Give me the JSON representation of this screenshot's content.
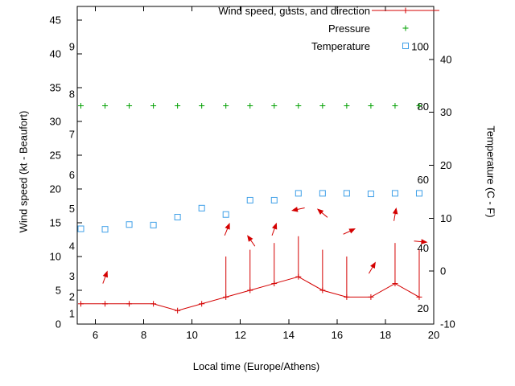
{
  "chart_data": {
    "type": "line",
    "title": "",
    "xlabel": "Local time (Europe/Athens)",
    "ylabel_left": "Wind speed (kt - Beaufort)",
    "ylabel_right": "Temperature (C - F)",
    "x_range": [
      5.25,
      20
    ],
    "x_ticks": [
      6,
      8,
      10,
      12,
      14,
      16,
      18,
      20
    ],
    "left_axis": {
      "ticks": [
        0,
        5,
        10,
        15,
        20,
        25,
        30,
        35,
        40,
        45
      ],
      "range": [
        0,
        47
      ]
    },
    "right_axis": {
      "ticks": [
        -10,
        0,
        10,
        20,
        30,
        40
      ],
      "range": [
        -10,
        50
      ]
    },
    "beaufort_scale_labels": [
      [
        "1",
        1.5
      ],
      [
        "2",
        4
      ],
      [
        "3",
        7
      ],
      [
        "4",
        11.5
      ],
      [
        "5",
        17
      ],
      [
        "6",
        22
      ],
      [
        "7",
        28
      ],
      [
        "8",
        34
      ],
      [
        "9",
        41
      ]
    ],
    "fahrenheit_scale_labels": [
      [
        "20",
        -7.1
      ],
      [
        "40",
        4.3
      ],
      [
        "60",
        17.2
      ],
      [
        "80",
        31.0
      ],
      [
        "100",
        42.3
      ]
    ],
    "legend": [
      {
        "label": "Wind speed, gusts, and direction",
        "series": "wind"
      },
      {
        "label": "Pressure",
        "series": "pressure"
      },
      {
        "label": "Temperature",
        "series": "temperature"
      }
    ],
    "colors": {
      "wind": "#d40000",
      "pressure": "#00a000",
      "temperature": "#3fa0e8",
      "axis": "#000000"
    },
    "x_hours": [
      5.4,
      6.4,
      7.4,
      8.4,
      9.4,
      10.4,
      11.4,
      12.4,
      13.4,
      14.4,
      15.4,
      16.4,
      17.4,
      18.4,
      19.4
    ],
    "wind": {
      "speed_kt": [
        3,
        3,
        3,
        3,
        2,
        3,
        4,
        5,
        6,
        7,
        5,
        4,
        4,
        6,
        4
      ],
      "gust_kt": [
        null,
        null,
        null,
        null,
        null,
        null,
        10,
        11,
        12,
        13,
        11,
        10,
        null,
        12,
        11
      ],
      "direction_arrows": [
        {
          "x": 6.4,
          "kt": 6.9,
          "angle_deg": 70
        },
        {
          "x": 11.45,
          "kt": 14.0,
          "angle_deg": 68
        },
        {
          "x": 12.45,
          "kt": 12.3,
          "angle_deg": 125
        },
        {
          "x": 13.4,
          "kt": 14.0,
          "angle_deg": 70
        },
        {
          "x": 14.4,
          "kt": 17.0,
          "angle_deg": 192
        },
        {
          "x": 15.4,
          "kt": 16.4,
          "angle_deg": 140
        },
        {
          "x": 16.5,
          "kt": 13.7,
          "angle_deg": 25
        },
        {
          "x": 17.45,
          "kt": 8.3,
          "angle_deg": 60
        },
        {
          "x": 18.4,
          "kt": 16.2,
          "angle_deg": 80
        },
        {
          "x": 19.45,
          "kt": 12.2,
          "angle_deg": -5
        }
      ]
    },
    "pressure": {
      "plotted_level_kt_axis": 32.3
    },
    "temperature": {
      "values_c": [
        8.0,
        7.9,
        8.8,
        8.7,
        10.2,
        11.9,
        10.7,
        13.4,
        13.4,
        14.7,
        14.7,
        14.7,
        14.6,
        14.7,
        14.7
      ]
    }
  }
}
